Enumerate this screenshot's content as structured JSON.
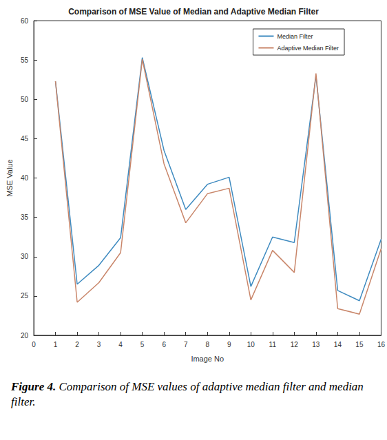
{
  "chart_data": {
    "type": "line",
    "title": "Comparison of MSE Value of Median and Adaptive Median Filter",
    "xlabel": "Image No",
    "ylabel": "MSE Value",
    "caption": "Figure 4. Comparison of MSE values of adaptive median filter and median filter.",
    "x": [
      1,
      2,
      3,
      4,
      5,
      6,
      7,
      8,
      9,
      10,
      11,
      12,
      13,
      14,
      15,
      16
    ],
    "series": [
      {
        "name": "Median Filter",
        "color": "#3f8bc0",
        "values": [
          52.3,
          26.5,
          28.9,
          32.4,
          55.3,
          43.5,
          36.0,
          39.2,
          40.1,
          26.2,
          32.5,
          31.8,
          53.0,
          25.7,
          24.4,
          32.2
        ]
      },
      {
        "name": "Adaptive Median Filter",
        "color": "#c9866a",
        "values": [
          52.3,
          24.2,
          26.7,
          30.5,
          55.1,
          41.8,
          34.3,
          38.0,
          38.7,
          24.5,
          30.8,
          28.0,
          53.3,
          23.4,
          22.7,
          31.0
        ]
      }
    ],
    "xlim": [
      0,
      16
    ],
    "xticks": [
      0,
      1,
      2,
      3,
      4,
      5,
      6,
      7,
      8,
      9,
      10,
      11,
      12,
      13,
      14,
      15,
      16
    ],
    "ylim": [
      20,
      60
    ],
    "yticks": [
      20,
      25,
      30,
      35,
      40,
      45,
      50,
      55,
      60
    ],
    "grid": false,
    "legend": "upper right"
  }
}
